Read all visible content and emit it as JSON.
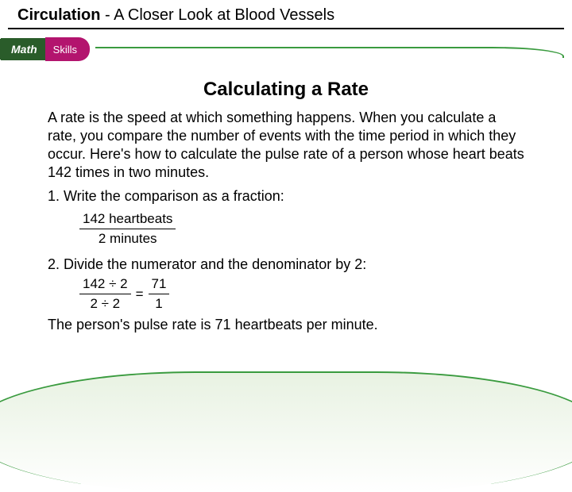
{
  "header": {
    "chapter": "Circulation",
    "separator": " - ",
    "subtitle": "A Closer Look at Blood Vessels"
  },
  "badge": {
    "left": "Math",
    "right": "Skills"
  },
  "title": "Calculating a Rate",
  "intro": "A rate is the speed at which something happens. When you calculate a rate, you compare the number of events with the time period in which they occur. Here's how to calculate the pulse rate of a person whose heart beats 142 times in two minutes.",
  "step1": "1. Write the comparison as a fraction:",
  "fraction1": {
    "num": "142 heartbeats",
    "den": "2 minutes"
  },
  "step2": "2. Divide the numerator and the denominator by 2:",
  "fraction2": {
    "num": "142 ÷ 2",
    "den": "2 ÷ 2",
    "eq": "=",
    "rnum": "71",
    "rden": "1"
  },
  "conclusion": "The person's pulse rate is 71 heartbeats per minute.",
  "colors": {
    "green": "#3a9b3f",
    "darkgreen": "#2a5c2a",
    "magenta": "#b3146e"
  }
}
